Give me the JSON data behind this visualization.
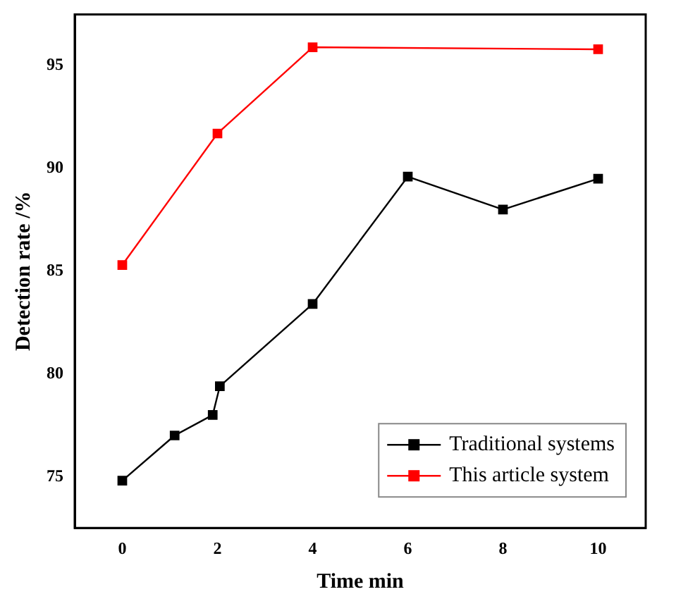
{
  "chart_data": {
    "type": "line",
    "xlabel": "Time min",
    "ylabel": "Detection rate /%",
    "xlim": [
      -1,
      11
    ],
    "xticks": [
      0,
      2,
      4,
      6,
      8,
      10
    ],
    "ylim": [
      72.5,
      97.5
    ],
    "yticks": [
      75,
      80,
      85,
      90,
      95
    ],
    "grid": false,
    "legend": "bottom right",
    "marker": "square",
    "line_style": "solid",
    "series": [
      {
        "name": "Traditional systems",
        "color": "#000000",
        "x": [
          0,
          1.1,
          1.9,
          2.05,
          4,
          6,
          8,
          10
        ],
        "values": [
          74.8,
          77.0,
          78.0,
          79.4,
          83.4,
          89.6,
          88.0,
          89.5
        ]
      },
      {
        "name": "This article system",
        "color": "#ff0000",
        "x": [
          0,
          2,
          4,
          10
        ],
        "values": [
          85.3,
          91.7,
          95.9,
          95.8
        ]
      }
    ]
  }
}
